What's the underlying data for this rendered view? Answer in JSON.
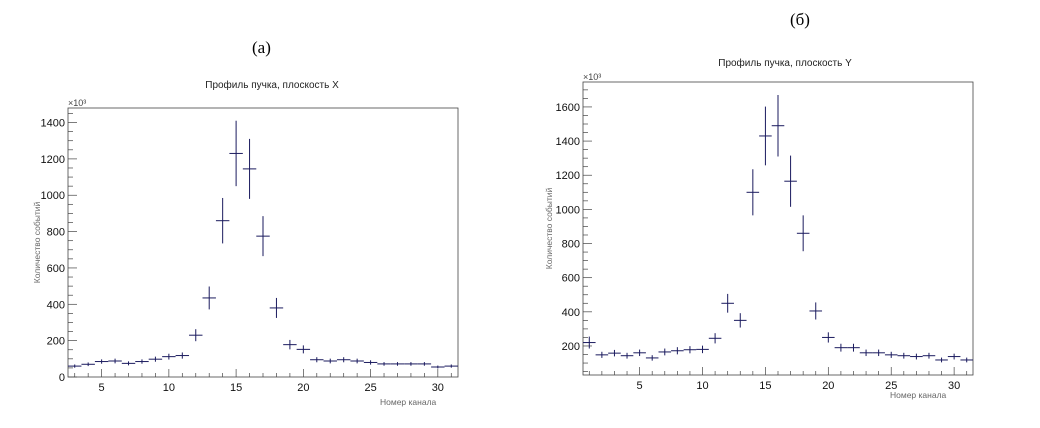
{
  "panels": {
    "a": "(а)",
    "b": "(б)"
  },
  "chart_data": [
    {
      "type": "scatter",
      "title": "Профиль пучка, плоскость  X",
      "xlabel": "Номер канала",
      "ylabel": "Количество событий",
      "y_multiplier": "×10³",
      "xlim": [
        2.5,
        31.5
      ],
      "ylim": [
        0,
        1480
      ],
      "xticks": [
        5,
        10,
        15,
        20,
        25,
        30
      ],
      "yticks": [
        0,
        200,
        400,
        600,
        800,
        1000,
        1200,
        1400
      ],
      "x": [
        3,
        4,
        5,
        6,
        7,
        8,
        9,
        10,
        11,
        12,
        13,
        14,
        15,
        16,
        17,
        18,
        19,
        20,
        21,
        22,
        23,
        24,
        25,
        26,
        27,
        28,
        29,
        30,
        31
      ],
      "values": [
        60,
        70,
        85,
        88,
        75,
        85,
        98,
        112,
        118,
        230,
        435,
        860,
        1230,
        1145,
        775,
        380,
        178,
        152,
        95,
        88,
        95,
        88,
        80,
        72,
        72,
        72,
        72,
        55,
        60
      ],
      "errors": [
        9,
        10,
        12,
        13,
        11,
        12,
        14,
        16,
        17,
        33,
        63,
        125,
        180,
        165,
        110,
        55,
        26,
        22,
        14,
        13,
        14,
        13,
        12,
        10,
        10,
        10,
        10,
        8,
        9
      ],
      "color": "#1a1a5e"
    },
    {
      "type": "scatter",
      "title": "Профиль пучка, плоскость Y",
      "xlabel": "Номер канала",
      "ylabel": "Количество событий",
      "y_multiplier": "×10³",
      "xlim": [
        0.5,
        31.5
      ],
      "ylim": [
        30,
        1746
      ],
      "xticks": [
        5,
        10,
        15,
        20,
        25,
        30
      ],
      "yticks": [
        200,
        400,
        600,
        800,
        1000,
        1200,
        1400,
        1600
      ],
      "x": [
        1,
        2,
        3,
        4,
        5,
        6,
        7,
        8,
        9,
        10,
        11,
        12,
        13,
        14,
        15,
        16,
        17,
        18,
        19,
        20,
        21,
        22,
        23,
        24,
        25,
        26,
        27,
        28,
        29,
        30,
        31
      ],
      "values": [
        220,
        148,
        158,
        143,
        160,
        130,
        165,
        172,
        178,
        180,
        245,
        450,
        350,
        1100,
        1430,
        1490,
        1165,
        860,
        405,
        250,
        190,
        190,
        160,
        160,
        148,
        143,
        138,
        143,
        118,
        138,
        118
      ],
      "errors": [
        35,
        18,
        19,
        17,
        19,
        16,
        20,
        21,
        21,
        22,
        30,
        55,
        42,
        135,
        172,
        180,
        150,
        105,
        50,
        30,
        23,
        23,
        19,
        19,
        18,
        17,
        17,
        17,
        14,
        17,
        14
      ],
      "color": "#1a1a5e"
    }
  ]
}
